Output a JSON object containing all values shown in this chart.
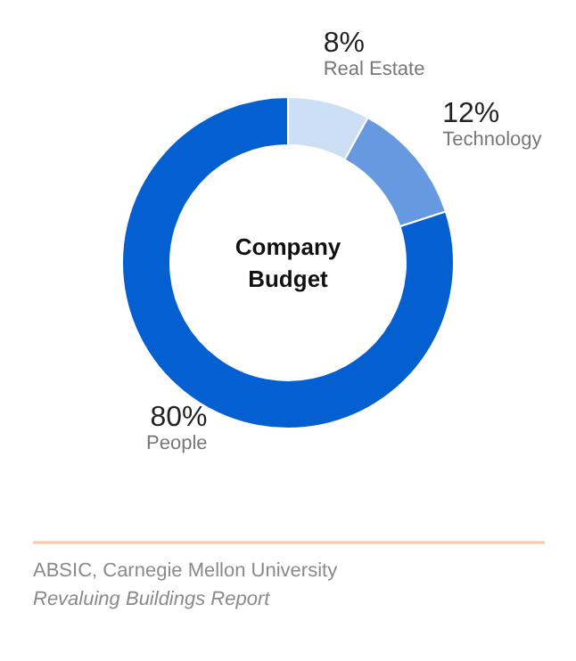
{
  "chart_data": {
    "type": "donut",
    "title": "Company Budget",
    "categories": [
      "Real Estate",
      "Technology",
      "People"
    ],
    "values": [
      8,
      12,
      80
    ],
    "value_labels": [
      "8%",
      "12%",
      "80%"
    ],
    "colors": [
      "#cddff5",
      "#6699e0",
      "#045fd0"
    ],
    "annotations": [
      "ABSIC, Carnegie Mellon University",
      "Revaluing Buildings Report"
    ]
  }
}
